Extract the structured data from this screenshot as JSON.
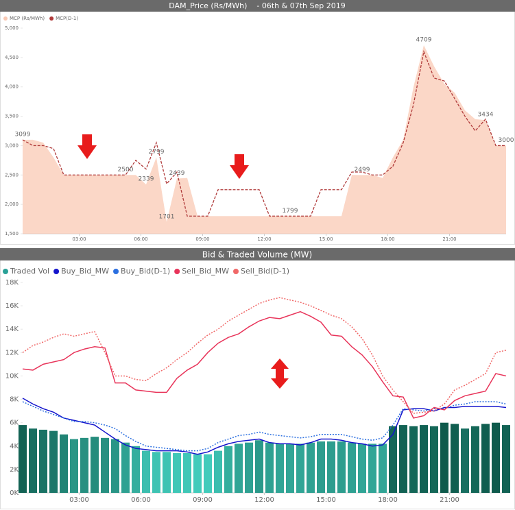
{
  "chart_data": [
    {
      "type": "area",
      "title": "DAM_Price (Rs/MWh)    - 06th & 07th Sep 2019",
      "x": [
        0.25,
        0.75,
        1.25,
        1.75,
        2.25,
        2.75,
        3.25,
        3.75,
        4.25,
        4.75,
        5.25,
        5.75,
        6.25,
        6.75,
        7.25,
        7.75,
        8.25,
        8.75,
        9.25,
        9.75,
        10.25,
        10.75,
        11.25,
        11.75,
        12.25,
        12.75,
        13.25,
        13.75,
        14.25,
        14.75,
        15.25,
        15.75,
        16.25,
        16.75,
        17.25,
        17.75,
        18.25,
        18.75,
        19.25,
        19.75,
        20.25,
        20.75,
        21.25,
        21.75,
        22.25,
        22.75,
        23.25,
        23.75
      ],
      "xlim": [
        0.25,
        23.75
      ],
      "xticks": [
        {
          "value": 3,
          "label": "03:00"
        },
        {
          "value": 6,
          "label": "06:00"
        },
        {
          "value": 9,
          "label": "09:00"
        },
        {
          "value": 12,
          "label": "12:00"
        },
        {
          "value": 15,
          "label": "15:00"
        },
        {
          "value": 18,
          "label": "18:00"
        },
        {
          "value": 21,
          "label": "21:00"
        }
      ],
      "ylim": [
        1500,
        5000
      ],
      "yticks": [
        {
          "value": 1500,
          "label": "1,500"
        },
        {
          "value": 2000,
          "label": "2,000"
        },
        {
          "value": 2500,
          "label": "2,500"
        },
        {
          "value": 3000,
          "label": "3,000"
        },
        {
          "value": 3500,
          "label": "3,500"
        },
        {
          "value": 4000,
          "label": "4,000"
        },
        {
          "value": 4500,
          "label": "4,500"
        },
        {
          "value": 5000,
          "label": "5,000"
        }
      ],
      "series": [
        {
          "name": "MCP (Rs/MWh)",
          "color": "#f9c9b4",
          "style": "area",
          "values": [
            3099,
            3100,
            3050,
            2800,
            2500,
            2500,
            2500,
            2500,
            2500,
            2500,
            2500,
            2500,
            2339,
            2799,
            1701,
            2439,
            2450,
            1800,
            1800,
            1800,
            1800,
            1800,
            1800,
            1800,
            1800,
            1800,
            1799,
            1800,
            1800,
            1800,
            1800,
            1800,
            2500,
            2499,
            2500,
            2450,
            2800,
            3100,
            4000,
            4709,
            4350,
            4050,
            3900,
            3600,
            3450,
            3434,
            3000,
            3000
          ],
          "value_labels": [
            "3099",
            null,
            null,
            null,
            null,
            null,
            null,
            null,
            null,
            null,
            "2500",
            null,
            "2339",
            "2799",
            "1701",
            "2439",
            null,
            null,
            null,
            null,
            null,
            null,
            null,
            null,
            null,
            null,
            "1799",
            null,
            null,
            null,
            null,
            null,
            null,
            "2499",
            null,
            null,
            null,
            null,
            null,
            "4709",
            null,
            null,
            null,
            null,
            null,
            "3434",
            null,
            "3000"
          ]
        },
        {
          "name": "MCP(D-1)",
          "color": "#b03a3a",
          "style": "dashed",
          "values": [
            3099,
            3000,
            3000,
            2950,
            2500,
            2500,
            2500,
            2500,
            2500,
            2500,
            2500,
            2750,
            2600,
            3050,
            2350,
            2550,
            1800,
            1800,
            1800,
            2250,
            2250,
            2250,
            2250,
            2250,
            1800,
            1800,
            1800,
            1800,
            1800,
            2250,
            2250,
            2250,
            2550,
            2550,
            2500,
            2500,
            2650,
            3050,
            3700,
            4600,
            4150,
            4100,
            3800,
            3500,
            3250,
            3450,
            3000,
            3000
          ]
        }
      ]
    },
    {
      "type": "combo",
      "title": "Bid & Traded Volume (MW)",
      "x": [
        0.25,
        0.75,
        1.25,
        1.75,
        2.25,
        2.75,
        3.25,
        3.75,
        4.25,
        4.75,
        5.25,
        5.75,
        6.25,
        6.75,
        7.25,
        7.75,
        8.25,
        8.75,
        9.25,
        9.75,
        10.25,
        10.75,
        11.25,
        11.75,
        12.25,
        12.75,
        13.25,
        13.75,
        14.25,
        14.75,
        15.25,
        15.75,
        16.25,
        16.75,
        17.25,
        17.75,
        18.25,
        18.75,
        19.25,
        19.75,
        20.25,
        20.75,
        21.25,
        21.75,
        22.25,
        22.75,
        23.25,
        23.75
      ],
      "xlim": [
        0.25,
        23.75
      ],
      "xticks": [
        {
          "value": 3,
          "label": "03:00"
        },
        {
          "value": 6,
          "label": "06:00"
        },
        {
          "value": 9,
          "label": "09:00"
        },
        {
          "value": 12,
          "label": "12:00"
        },
        {
          "value": 15,
          "label": "15:00"
        },
        {
          "value": 18,
          "label": "18:00"
        },
        {
          "value": 21,
          "label": "21:00"
        }
      ],
      "ylim": [
        0,
        18000
      ],
      "yticks": [
        {
          "value": 0,
          "label": "0K"
        },
        {
          "value": 2000,
          "label": "2K"
        },
        {
          "value": 4000,
          "label": "4K"
        },
        {
          "value": 6000,
          "label": "6K"
        },
        {
          "value": 8000,
          "label": "8K"
        },
        {
          "value": 10000,
          "label": "10K"
        },
        {
          "value": 12000,
          "label": "12K"
        },
        {
          "value": 14000,
          "label": "14K"
        },
        {
          "value": 16000,
          "label": "16K"
        },
        {
          "value": 18000,
          "label": "18K"
        }
      ],
      "series": [
        {
          "name": "Traded Vol",
          "color": "#2aa197",
          "color_min": "#42cbbb",
          "color_max": "#0e5a4c",
          "style": "bar",
          "values": [
            5800,
            5500,
            5400,
            5300,
            5000,
            4600,
            4700,
            4800,
            4700,
            4600,
            4300,
            4000,
            3600,
            3500,
            3500,
            3400,
            3400,
            3300,
            3300,
            3600,
            4000,
            4200,
            4300,
            4500,
            4300,
            4200,
            4200,
            4200,
            4300,
            4400,
            4400,
            4400,
            4300,
            4200,
            4200,
            4200,
            5700,
            5800,
            5700,
            5800,
            5700,
            6000,
            5900,
            5500,
            5700,
            5900,
            6000,
            5800
          ]
        },
        {
          "name": "Buy_Bid_MW",
          "color": "#1414cc",
          "style": "solid",
          "values": [
            8100,
            7600,
            7200,
            6900,
            6400,
            6200,
            6000,
            5800,
            5200,
            4600,
            4100,
            3800,
            3700,
            3600,
            3600,
            3600,
            3500,
            3300,
            3500,
            3900,
            4200,
            4400,
            4500,
            4600,
            4300,
            4200,
            4200,
            4100,
            4300,
            4600,
            4600,
            4500,
            4300,
            4200,
            4000,
            4100,
            5000,
            7100,
            7200,
            7200,
            7000,
            7300,
            7300,
            7400,
            7400,
            7400,
            7400,
            7300
          ]
        },
        {
          "name": "Buy_Bid(D-1)",
          "color": "#2b6fe0",
          "style": "dotted",
          "values": [
            7800,
            7400,
            7000,
            6700,
            6400,
            6100,
            6100,
            6000,
            5800,
            5500,
            4900,
            4400,
            4000,
            3900,
            3800,
            3700,
            3600,
            3600,
            3800,
            4300,
            4600,
            4900,
            5000,
            5200,
            5000,
            4900,
            4800,
            4700,
            4800,
            5000,
            5000,
            5000,
            4800,
            4600,
            4500,
            4700,
            5800,
            7200,
            7100,
            7000,
            7200,
            7200,
            7500,
            7600,
            7800,
            7800,
            7800,
            7600
          ]
        },
        {
          "name": "Sell_Bid_MW",
          "color": "#e8345a",
          "style": "solid",
          "values": [
            10600,
            10500,
            11000,
            11200,
            11400,
            12000,
            12300,
            12500,
            12400,
            9400,
            9400,
            8800,
            8700,
            8600,
            8600,
            9800,
            10500,
            11000,
            12000,
            12800,
            13300,
            13600,
            14200,
            14700,
            15000,
            14900,
            15200,
            15500,
            15100,
            14600,
            13500,
            13400,
            12500,
            11800,
            10800,
            9500,
            8300,
            8200,
            6400,
            6600,
            7300,
            7100,
            7900,
            8300,
            8500,
            8700,
            10200,
            10000
          ]
        },
        {
          "name": "Sell_Bid(D-1)",
          "color": "#f06868",
          "style": "dotted",
          "values": [
            12000,
            12600,
            12900,
            13300,
            13600,
            13400,
            13600,
            13800,
            12000,
            10000,
            10000,
            9700,
            9600,
            10200,
            10700,
            11400,
            12000,
            12800,
            13500,
            14000,
            14700,
            15200,
            15700,
            16200,
            16500,
            16700,
            16500,
            16300,
            16000,
            15600,
            15200,
            14900,
            14200,
            13200,
            11800,
            10000,
            8800,
            7800,
            6800,
            6900,
            7000,
            7600,
            8800,
            9200,
            9700,
            10200,
            12000,
            12200
          ]
        }
      ]
    }
  ]
}
